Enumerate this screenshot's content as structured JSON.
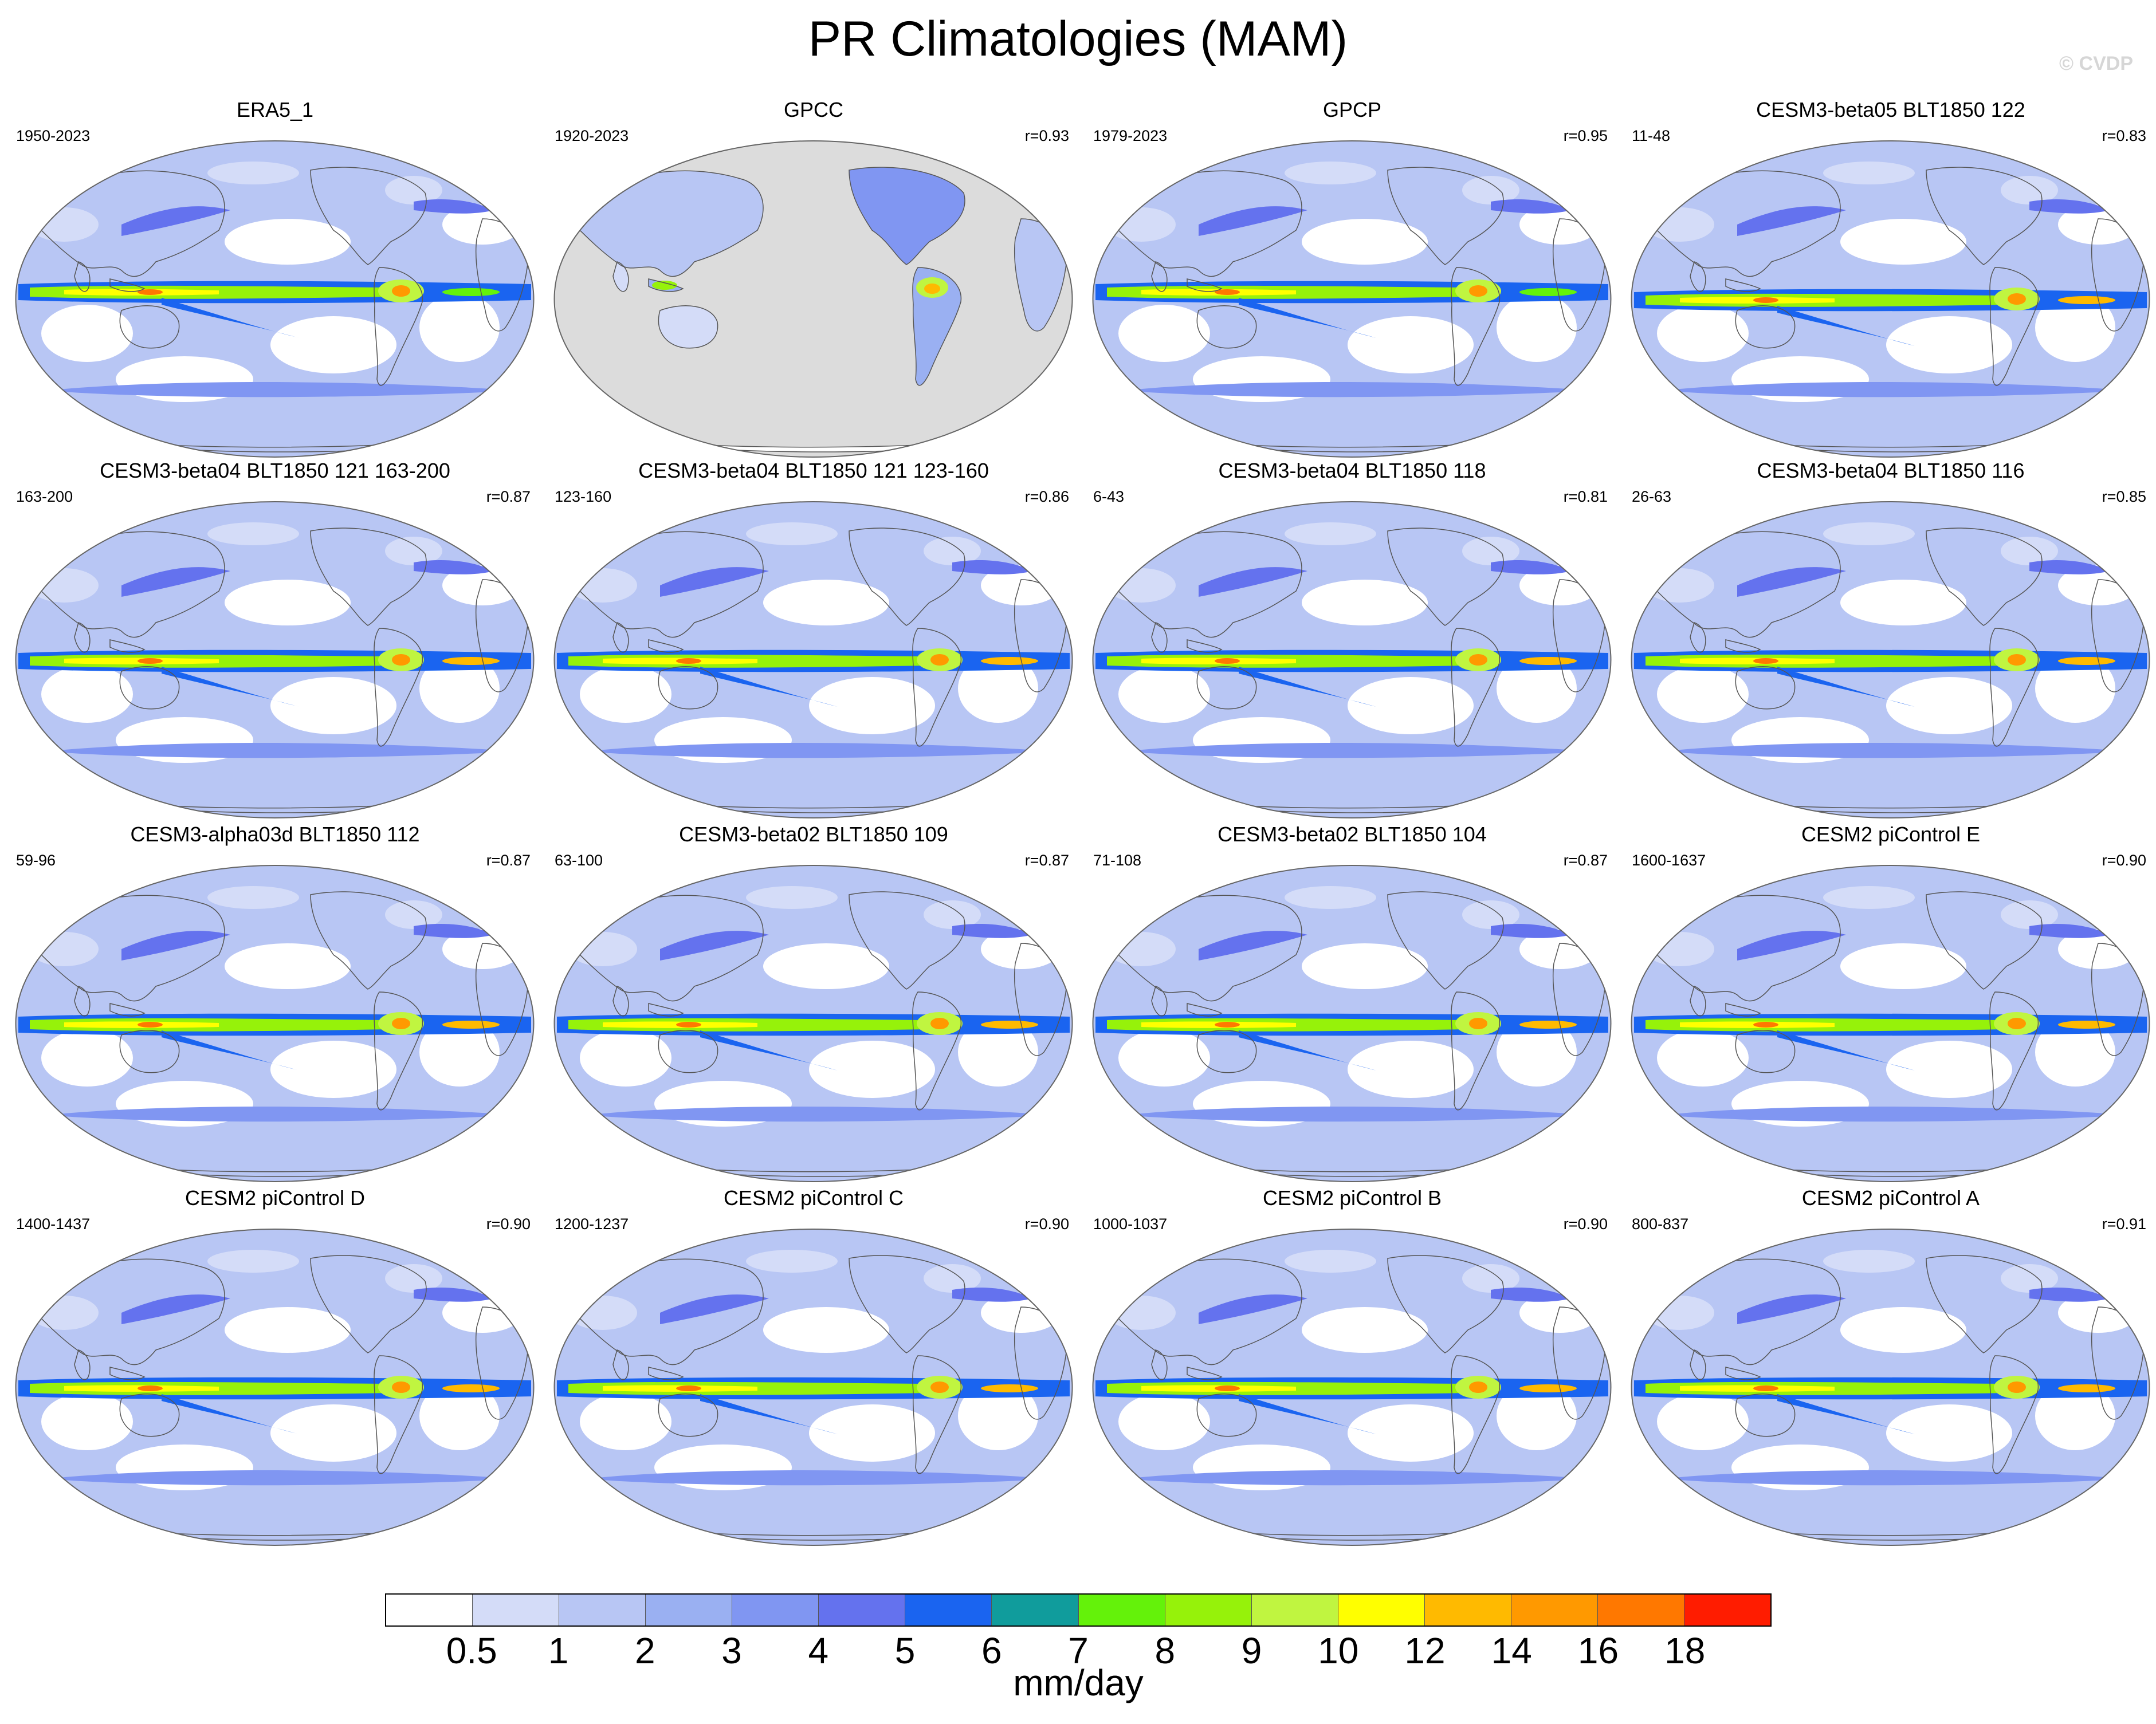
{
  "title": "PR Climatologies (MAM)",
  "watermark": "© CVDP",
  "colorbar": {
    "units": "mm/day",
    "ticks": [
      "0.5",
      "1",
      "2",
      "3",
      "4",
      "5",
      "6",
      "7",
      "8",
      "9",
      "10",
      "12",
      "14",
      "16",
      "18"
    ],
    "colors": [
      "#ffffff",
      "#d4dcf8",
      "#b8c6f4",
      "#9ab0f2",
      "#8096f2",
      "#6472ee",
      "#1a64f0",
      "#109c9c",
      "#64f20a",
      "#96f20a",
      "#c0f540",
      "#ffff00",
      "#ffba00",
      "#ff9900",
      "#ff7800",
      "#ff1c00"
    ]
  },
  "panels": [
    {
      "title": "ERA5_1",
      "period": "1950-2023",
      "r": "",
      "style": "obs"
    },
    {
      "title": "GPCC",
      "period": "1920-2023",
      "r": "r=0.93",
      "style": "land"
    },
    {
      "title": "GPCP",
      "period": "1979-2023",
      "r": "r=0.95",
      "style": "obs"
    },
    {
      "title": "CESM3-beta05 BLT1850 122",
      "period": "11-48",
      "r": "r=0.83",
      "style": "model"
    },
    {
      "title": "CESM3-beta04 BLT1850 121 163-200",
      "period": "163-200",
      "r": "r=0.87",
      "style": "model"
    },
    {
      "title": "CESM3-beta04 BLT1850 121 123-160",
      "period": "123-160",
      "r": "r=0.86",
      "style": "model"
    },
    {
      "title": "CESM3-beta04 BLT1850 118",
      "period": "6-43",
      "r": "r=0.81",
      "style": "model"
    },
    {
      "title": "CESM3-beta04 BLT1850 116",
      "period": "26-63",
      "r": "r=0.85",
      "style": "model"
    },
    {
      "title": "CESM3-alpha03d BLT1850 112",
      "period": "59-96",
      "r": "r=0.87",
      "style": "model"
    },
    {
      "title": "CESM3-beta02 BLT1850 109",
      "period": "63-100",
      "r": "r=0.87",
      "style": "model"
    },
    {
      "title": "CESM3-beta02 BLT1850 104",
      "period": "71-108",
      "r": "r=0.87",
      "style": "model"
    },
    {
      "title": "CESM2 piControl E",
      "period": "1600-1637",
      "r": "r=0.90",
      "style": "model"
    },
    {
      "title": "CESM2 piControl D",
      "period": "1400-1437",
      "r": "r=0.90",
      "style": "model"
    },
    {
      "title": "CESM2 piControl C",
      "period": "1200-1237",
      "r": "r=0.90",
      "style": "model"
    },
    {
      "title": "CESM2 piControl B",
      "period": "1000-1037",
      "r": "r=0.90",
      "style": "model"
    },
    {
      "title": "CESM2 piControl A",
      "period": "800-837",
      "r": "r=0.91",
      "style": "model"
    }
  ]
}
